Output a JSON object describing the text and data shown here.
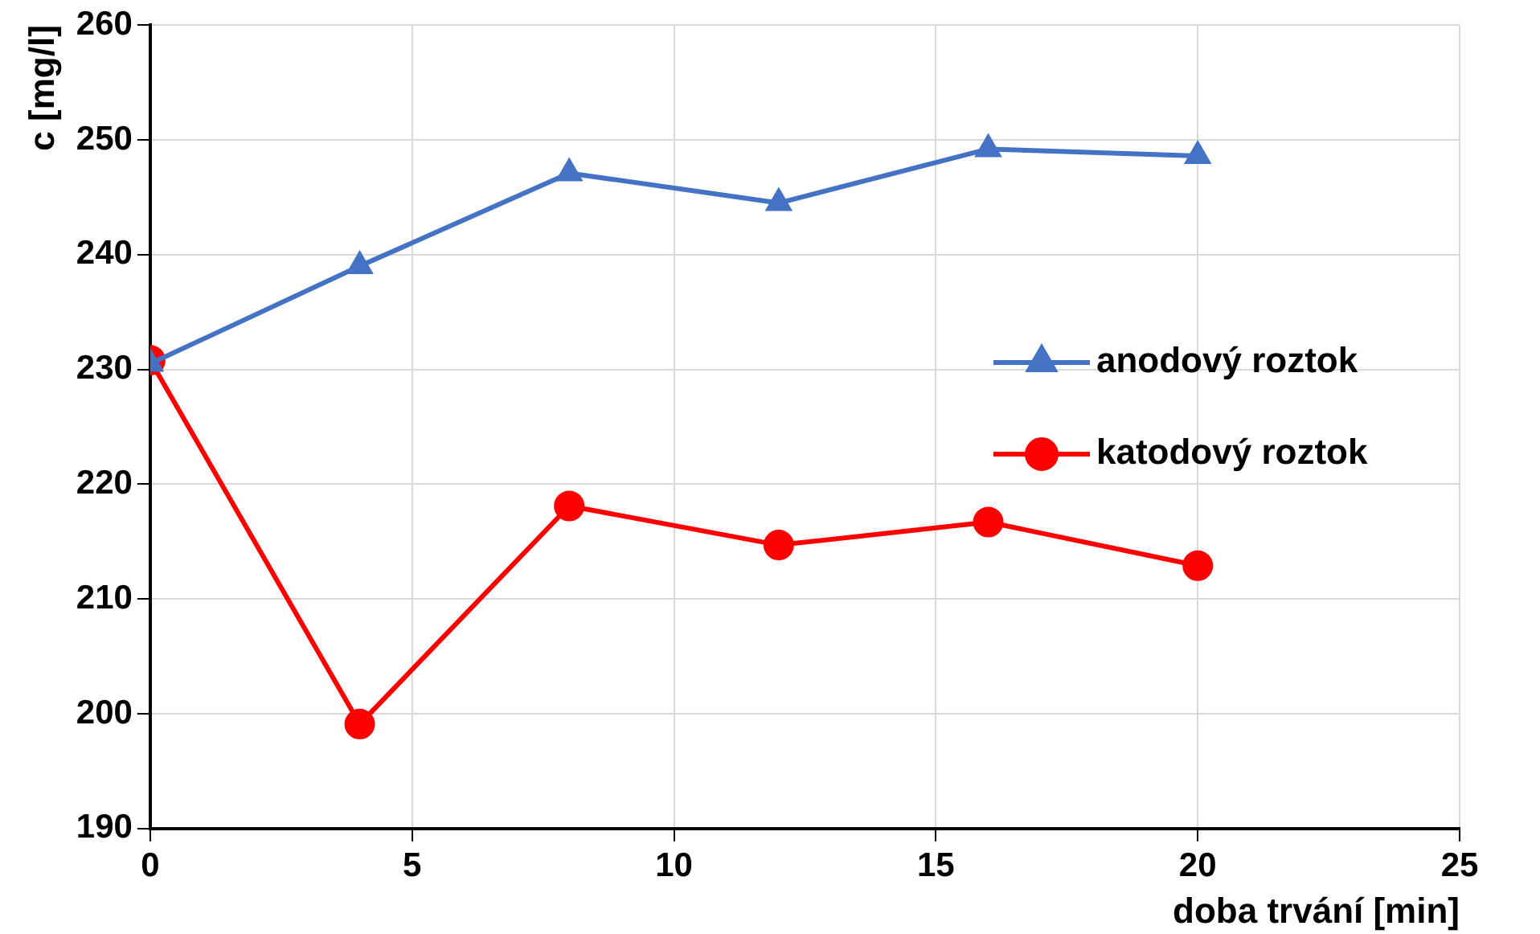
{
  "chart_data": {
    "type": "line",
    "xlabel": "doba trvání [min]",
    "ylabel": "c [mg/l]",
    "x": [
      0,
      4,
      8,
      12,
      16,
      20
    ],
    "series": [
      {
        "name": "anodový roztok",
        "color": "#4472c4",
        "marker": "triangle",
        "values": [
          230.5,
          239.0,
          247.1,
          244.5,
          249.2,
          248.6
        ]
      },
      {
        "name": "katodový roztok",
        "color": "#ff0000",
        "marker": "circle",
        "values": [
          230.8,
          199.1,
          218.1,
          214.7,
          216.7,
          212.9
        ]
      }
    ],
    "xlim": [
      0,
      25
    ],
    "xticks": [
      0,
      5,
      10,
      15,
      20,
      25
    ],
    "ylim": [
      190,
      260
    ],
    "yticks": [
      190,
      200,
      210,
      220,
      230,
      240,
      250,
      260
    ],
    "grid": true,
    "legend": "right",
    "line_style": "solid"
  }
}
